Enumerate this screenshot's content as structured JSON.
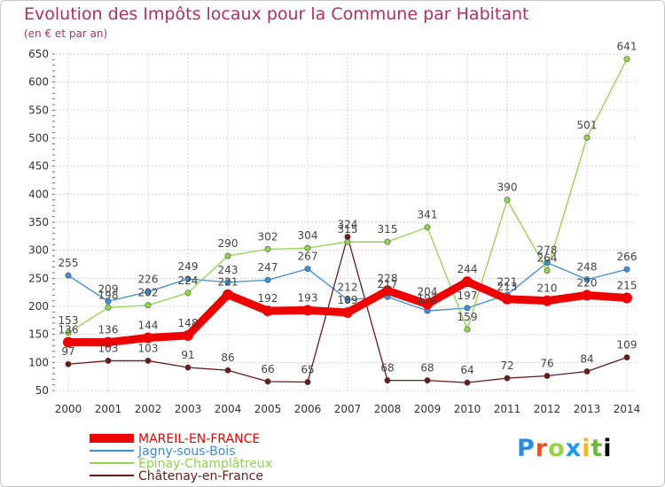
{
  "colors": {
    "title": "#b03060",
    "grid": "#d3d3d3",
    "axis_text": "#333333",
    "label_text": "#444444"
  },
  "logo_text": "Proxiti",
  "chart_data": {
    "type": "line",
    "title": "Evolution des Impôts locaux pour la Commune par Habitant",
    "subtitle": "(en € et par an)",
    "xlabel": "",
    "ylabel": "",
    "x": [
      "2000",
      "2001",
      "2002",
      "2003",
      "2004",
      "2005",
      "2006",
      "2007",
      "2008",
      "2009",
      "2010",
      "2011",
      "2012",
      "2013",
      "2014"
    ],
    "ylim": [
      50,
      650
    ],
    "yticks": [
      50,
      100,
      150,
      200,
      250,
      300,
      350,
      400,
      450,
      500,
      550,
      600,
      650
    ],
    "grid": true,
    "legend_position": "bottom-left",
    "series": [
      {
        "name": "MAREIL-EN-FRANCE",
        "color": "#ee0000",
        "emphasis": true,
        "values": [
          136,
          136,
          144,
          148,
          221,
          192,
          193,
          189,
          228,
          204,
          244,
          213,
          210,
          220,
          215
        ]
      },
      {
        "name": "Jagny-sous-Bois",
        "color": "#3a8fd6",
        "values": [
          255,
          209,
          226,
          249,
          243,
          247,
          267,
          212,
          217,
          192,
          197,
          221,
          278,
          248,
          266
        ]
      },
      {
        "name": "Epinay-Champlâtreux",
        "color": "#8fd44a",
        "values": [
          153,
          198,
          202,
          224,
          290,
          302,
          304,
          315,
          315,
          341,
          159,
          390,
          264,
          501,
          641
        ]
      },
      {
        "name": "Châtenay-en-France",
        "color": "#6b1a1a",
        "values": [
          97,
          103,
          103,
          91,
          86,
          66,
          65,
          324,
          68,
          68,
          64,
          72,
          76,
          84,
          109
        ]
      }
    ]
  }
}
